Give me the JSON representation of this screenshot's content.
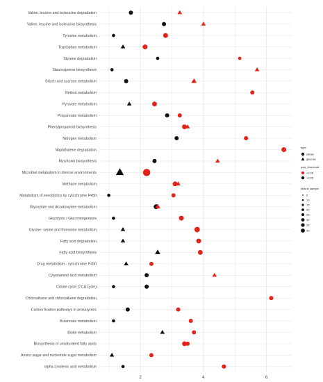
{
  "chart_data": {
    "type": "scatter",
    "x_ticks": [
      2,
      4,
      6
    ],
    "xlim": [
      0.7,
      6.8
    ],
    "categories": [
      "Valine, leucine and isoleucine degradation",
      "Valine, leucine and isoleucine biosynthesis",
      "Tyrosine metabolism",
      "Tryptophan metabolism",
      "Styrene degradation",
      "Staurosporine biosynthesis",
      "Starch and sucrose metabolism",
      "Retinol metabolism",
      "Pyruvate metabolism",
      "Propanoate metabolism",
      "Phenylpropanoid biosynthesis",
      "Nitrogen metabolism",
      "Naphthalene degradation",
      "Mycotoxin biosynthesis",
      "Microbial metabolism in diverse environments",
      "Methane metabolism",
      "Metabolism of xenobiotics by cytochrome P450",
      "Glyoxylate and dicarboxylate metabolism",
      "Glycolysis / Gluconeogenesis",
      "Glycine, serine and threonine metabolism",
      "Fatty acid degradation",
      "Fatty acid biosynthesis",
      "Drug metabolism - cytochrome P450",
      "Cyanoamino acid metabolism",
      "Citrate cycle (TCA cycle)",
      "Chloroalkane and chloroalkene degradation",
      "Carbon fixation pathways in prokaryotes",
      "Butanoate metabolism",
      "Biotin metabolism",
      "Biosynthesis of unsaturated fatty acids",
      "Amino sugar and nucleotide sugar metabolism",
      "alpha-Linolenic acid metabolism"
    ],
    "points": [
      {
        "cat": 0,
        "x": 1.7,
        "shape": "circle",
        "sig": false,
        "total": 10
      },
      {
        "cat": 0,
        "x": 3.25,
        "shape": "triangle",
        "sig": true,
        "total": 10
      },
      {
        "cat": 1,
        "x": 2.75,
        "shape": "circle",
        "sig": false,
        "total": 10
      },
      {
        "cat": 1,
        "x": 4.0,
        "shape": "triangle",
        "sig": true,
        "total": 10
      },
      {
        "cat": 2,
        "x": 1.15,
        "shape": "circle",
        "sig": false,
        "total": 5
      },
      {
        "cat": 2,
        "x": 2.8,
        "shape": "circle",
        "sig": true,
        "total": 15
      },
      {
        "cat": 3,
        "x": 1.45,
        "shape": "triangle",
        "sig": false,
        "total": 10
      },
      {
        "cat": 3,
        "x": 2.15,
        "shape": "circle",
        "sig": true,
        "total": 15
      },
      {
        "cat": 4,
        "x": 2.55,
        "shape": "circle",
        "sig": false,
        "total": 5
      },
      {
        "cat": 4,
        "x": 5.15,
        "shape": "circle",
        "sig": true,
        "total": 5
      },
      {
        "cat": 5,
        "x": 1.1,
        "shape": "circle",
        "sig": false,
        "total": 5
      },
      {
        "cat": 5,
        "x": 5.7,
        "shape": "triangle",
        "sig": true,
        "total": 10
      },
      {
        "cat": 6,
        "x": 1.55,
        "shape": "circle",
        "sig": false,
        "total": 10
      },
      {
        "cat": 6,
        "x": 3.7,
        "shape": "triangle",
        "sig": true,
        "total": 15
      },
      {
        "cat": 7,
        "x": 5.55,
        "shape": "circle",
        "sig": true,
        "total": 10
      },
      {
        "cat": 8,
        "x": 1.65,
        "shape": "triangle",
        "sig": false,
        "total": 10
      },
      {
        "cat": 8,
        "x": 2.45,
        "shape": "circle",
        "sig": true,
        "total": 15
      },
      {
        "cat": 9,
        "x": 2.85,
        "shape": "circle",
        "sig": false,
        "total": 10
      },
      {
        "cat": 9,
        "x": 3.25,
        "shape": "circle",
        "sig": true,
        "total": 10
      },
      {
        "cat": 10,
        "x": 3.4,
        "shape": "circle",
        "sig": true,
        "total": 15
      },
      {
        "cat": 10,
        "x": 3.5,
        "shape": "triangle",
        "sig": true,
        "total": 10
      },
      {
        "cat": 11,
        "x": 3.15,
        "shape": "circle",
        "sig": false,
        "total": 10
      },
      {
        "cat": 11,
        "x": 5.35,
        "shape": "circle",
        "sig": true,
        "total": 10
      },
      {
        "cat": 12,
        "x": 6.55,
        "shape": "circle",
        "sig": true,
        "total": 15
      },
      {
        "cat": 13,
        "x": 2.45,
        "shape": "circle",
        "sig": false,
        "total": 10
      },
      {
        "cat": 13,
        "x": 4.45,
        "shape": "triangle",
        "sig": true,
        "total": 10
      },
      {
        "cat": 14,
        "x": 1.35,
        "shape": "triangle",
        "sig": false,
        "total": 40
      },
      {
        "cat": 14,
        "x": 2.2,
        "shape": "circle",
        "sig": true,
        "total": 40
      },
      {
        "cat": 15,
        "x": 3.1,
        "shape": "circle",
        "sig": true,
        "total": 15
      },
      {
        "cat": 15,
        "x": 3.2,
        "shape": "triangle",
        "sig": true,
        "total": 10
      },
      {
        "cat": 16,
        "x": 1.0,
        "shape": "circle",
        "sig": false,
        "total": 5
      },
      {
        "cat": 16,
        "x": 3.05,
        "shape": "circle",
        "sig": true,
        "total": 10
      },
      {
        "cat": 17,
        "x": 2.5,
        "shape": "circle",
        "sig": false,
        "total": 15
      },
      {
        "cat": 17,
        "x": 2.55,
        "shape": "triangle",
        "sig": true,
        "total": 15
      },
      {
        "cat": 18,
        "x": 1.15,
        "shape": "circle",
        "sig": false,
        "total": 5
      },
      {
        "cat": 18,
        "x": 3.3,
        "shape": "circle",
        "sig": true,
        "total": 15
      },
      {
        "cat": 19,
        "x": 1.45,
        "shape": "triangle",
        "sig": false,
        "total": 10
      },
      {
        "cat": 19,
        "x": 3.8,
        "shape": "circle",
        "sig": true,
        "total": 20
      },
      {
        "cat": 20,
        "x": 1.45,
        "shape": "triangle",
        "sig": false,
        "total": 10
      },
      {
        "cat": 20,
        "x": 3.85,
        "shape": "circle",
        "sig": true,
        "total": 15
      },
      {
        "cat": 21,
        "x": 2.55,
        "shape": "triangle",
        "sig": false,
        "total": 15
      },
      {
        "cat": 21,
        "x": 3.9,
        "shape": "circle",
        "sig": true,
        "total": 15
      },
      {
        "cat": 22,
        "x": 1.55,
        "shape": "triangle",
        "sig": false,
        "total": 10
      },
      {
        "cat": 22,
        "x": 2.35,
        "shape": "circle",
        "sig": true,
        "total": 10
      },
      {
        "cat": 23,
        "x": 2.2,
        "shape": "circle",
        "sig": false,
        "total": 10
      },
      {
        "cat": 23,
        "x": 4.35,
        "shape": "triangle",
        "sig": true,
        "total": 10
      },
      {
        "cat": 24,
        "x": 1.15,
        "shape": "circle",
        "sig": false,
        "total": 5
      },
      {
        "cat": 24,
        "x": 2.2,
        "shape": "circle",
        "sig": false,
        "total": 10
      },
      {
        "cat": 25,
        "x": 6.15,
        "shape": "circle",
        "sig": true,
        "total": 10
      },
      {
        "cat": 26,
        "x": 1.6,
        "shape": "circle",
        "sig": false,
        "total": 10
      },
      {
        "cat": 26,
        "x": 3.2,
        "shape": "circle",
        "sig": true,
        "total": 10
      },
      {
        "cat": 27,
        "x": 1.15,
        "shape": "circle",
        "sig": false,
        "total": 5
      },
      {
        "cat": 27,
        "x": 3.6,
        "shape": "circle",
        "sig": true,
        "total": 10
      },
      {
        "cat": 28,
        "x": 2.7,
        "shape": "triangle",
        "sig": false,
        "total": 10
      },
      {
        "cat": 28,
        "x": 3.7,
        "shape": "circle",
        "sig": true,
        "total": 10
      },
      {
        "cat": 29,
        "x": 3.4,
        "shape": "circle",
        "sig": true,
        "total": 15
      },
      {
        "cat": 29,
        "x": 3.5,
        "shape": "circle",
        "sig": true,
        "total": 10
      },
      {
        "cat": 30,
        "x": 1.1,
        "shape": "triangle",
        "sig": false,
        "total": 10
      },
      {
        "cat": 30,
        "x": 2.35,
        "shape": "circle",
        "sig": true,
        "total": 10
      },
      {
        "cat": 31,
        "x": 1.45,
        "shape": "circle",
        "sig": false,
        "total": 5
      },
      {
        "cat": 31,
        "x": 4.65,
        "shape": "circle",
        "sig": true,
        "total": 10
      }
    ],
    "grid": true,
    "legend_placement": "right",
    "colors": {
      "significant": "#e2231a",
      "not_significant": "#111111",
      "panel_bg": "#ffffff",
      "grid": "#e6e6e6"
    }
  },
  "legend": {
    "type_title": "type",
    "type_items": [
      "citrate",
      "glucose"
    ],
    "pval_title": "pval_threshold",
    "pval_items": [
      "<0.05",
      ">0.05"
    ],
    "size_title": "total in sample",
    "size_items": [
      "5",
      "10",
      "15",
      "20",
      "25",
      "30",
      "35",
      "40"
    ]
  }
}
